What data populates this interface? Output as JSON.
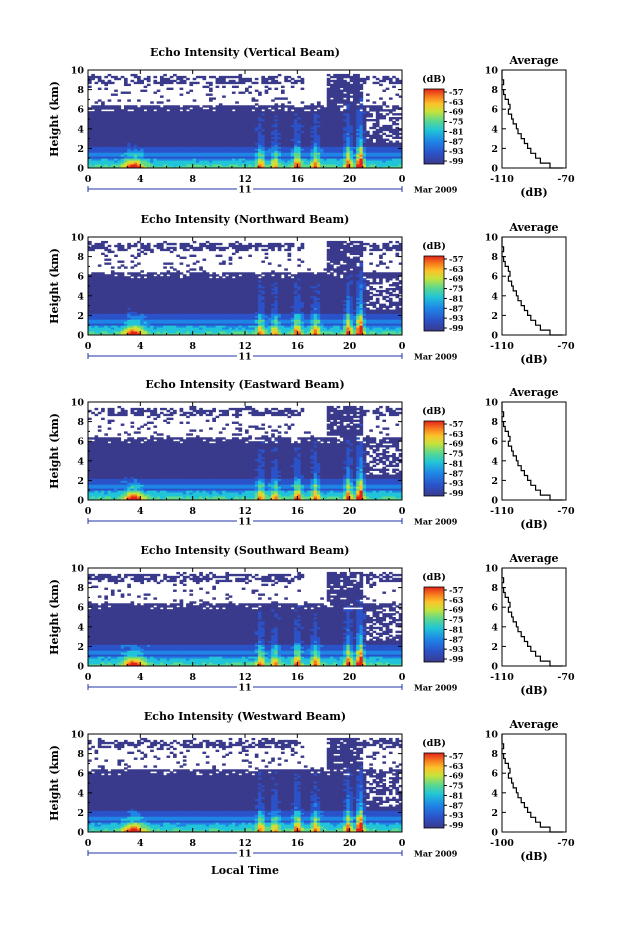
{
  "chart_data": [
    {
      "type": "heatmap",
      "title": "Echo Intensity (Vertical Beam)",
      "ylabel": "Height (km)",
      "x_ticks": [
        "0",
        "4",
        "8",
        "12",
        "16",
        "20",
        "0"
      ],
      "y_ticks": [
        "0",
        "2",
        "4",
        "6",
        "8",
        "10"
      ],
      "ylim": [
        0,
        10
      ],
      "date_label": "11",
      "date_suffix": "Mar 2009",
      "colorbar": {
        "label": "(dB)",
        "ticks": [
          "-57",
          "-63",
          "-69",
          "-75",
          "-81",
          "-87",
          "-93",
          "-99"
        ]
      },
      "average": {
        "title": "Average",
        "xlabel": "(dB)",
        "x_ticks": [
          "-110",
          "-70"
        ],
        "y_ticks": [
          "0",
          "2",
          "4",
          "6",
          "8",
          "10"
        ]
      }
    },
    {
      "type": "heatmap",
      "title": "Echo Intensity (Northward Beam)",
      "ylabel": "Height (km)",
      "x_ticks": [
        "0",
        "4",
        "8",
        "12",
        "16",
        "20",
        "0"
      ],
      "y_ticks": [
        "0",
        "2",
        "4",
        "6",
        "8",
        "10"
      ],
      "ylim": [
        0,
        10
      ],
      "date_label": "11",
      "date_suffix": "Mar 2009",
      "colorbar": {
        "label": "(dB)",
        "ticks": [
          "-57",
          "-63",
          "-69",
          "-75",
          "-81",
          "-87",
          "-93",
          "-99"
        ]
      },
      "average": {
        "title": "Average",
        "xlabel": "(dB)",
        "x_ticks": [
          "-110",
          "-70"
        ],
        "y_ticks": [
          "0",
          "2",
          "4",
          "6",
          "8",
          "10"
        ]
      }
    },
    {
      "type": "heatmap",
      "title": "Echo Intensity (Eastward Beam)",
      "ylabel": "Height (km)",
      "x_ticks": [
        "0",
        "4",
        "8",
        "12",
        "16",
        "20",
        "0"
      ],
      "y_ticks": [
        "0",
        "2",
        "4",
        "6",
        "8",
        "10"
      ],
      "ylim": [
        0,
        10
      ],
      "date_label": "11",
      "date_suffix": "Mar 2009",
      "colorbar": {
        "label": "(dB)",
        "ticks": [
          "-57",
          "-63",
          "-69",
          "-75",
          "-81",
          "-87",
          "-93",
          "-99"
        ]
      },
      "average": {
        "title": "Average",
        "xlabel": "(dB)",
        "x_ticks": [
          "-110",
          "-70"
        ],
        "y_ticks": [
          "0",
          "2",
          "4",
          "6",
          "8",
          "10"
        ]
      }
    },
    {
      "type": "heatmap",
      "title": "Echo Intensity (Southward Beam)",
      "ylabel": "Height (km)",
      "x_ticks": [
        "0",
        "4",
        "8",
        "12",
        "16",
        "20",
        "0"
      ],
      "y_ticks": [
        "0",
        "2",
        "4",
        "6",
        "8",
        "10"
      ],
      "ylim": [
        0,
        10
      ],
      "date_label": "11",
      "date_suffix": "Mar 2009",
      "colorbar": {
        "label": "(dB)",
        "ticks": [
          "-57",
          "-63",
          "-69",
          "-75",
          "-81",
          "-87",
          "-93",
          "-99"
        ]
      },
      "average": {
        "title": "Average",
        "xlabel": "(dB)",
        "x_ticks": [
          "-110",
          "-70"
        ],
        "y_ticks": [
          "0",
          "2",
          "4",
          "6",
          "8",
          "10"
        ]
      }
    },
    {
      "type": "heatmap",
      "title": "Echo Intensity (Westward Beam)",
      "ylabel": "Height (km)",
      "x_ticks": [
        "0",
        "4",
        "8",
        "12",
        "16",
        "20",
        "0"
      ],
      "y_ticks": [
        "0",
        "2",
        "4",
        "6",
        "8",
        "10"
      ],
      "ylim": [
        0,
        10
      ],
      "date_label": "11",
      "date_suffix": "Mar 2009",
      "xlabel": "Local Time",
      "colorbar": {
        "label": "(dB)",
        "ticks": [
          "-57",
          "-63",
          "-69",
          "-75",
          "-81",
          "-87",
          "-93",
          "-99"
        ]
      },
      "average": {
        "title": "Average",
        "xlabel": "(dB)",
        "x_ticks": [
          "-100",
          "-70"
        ],
        "y_ticks": [
          "0",
          "2",
          "4",
          "6",
          "8",
          "10"
        ]
      }
    }
  ],
  "average_profile_db": [
    [
      0.0,
      -72
    ],
    [
      0.5,
      -80
    ],
    [
      1.0,
      -86
    ],
    [
      1.5,
      -89
    ],
    [
      2.0,
      -92
    ],
    [
      2.5,
      -94
    ],
    [
      3.0,
      -96
    ],
    [
      3.5,
      -98
    ],
    [
      4.0,
      -100
    ],
    [
      4.5,
      -101
    ],
    [
      5.0,
      -103
    ],
    [
      5.5,
      -104
    ],
    [
      6.0,
      -106
    ],
    [
      6.5,
      -105
    ],
    [
      7.0,
      -106
    ],
    [
      7.5,
      -108
    ],
    [
      8.0,
      -109
    ],
    [
      8.5,
      -110
    ],
    [
      9.0,
      -109
    ],
    [
      9.5,
      -110
    ],
    [
      10.0,
      -110
    ]
  ],
  "colors": {
    "colormap": [
      "#3a3a8c",
      "#2b52c8",
      "#1f84e6",
      "#21c4d8",
      "#5fd98a",
      "#c8e23a",
      "#fbc42a",
      "#f77a1d",
      "#e3241b"
    ]
  }
}
